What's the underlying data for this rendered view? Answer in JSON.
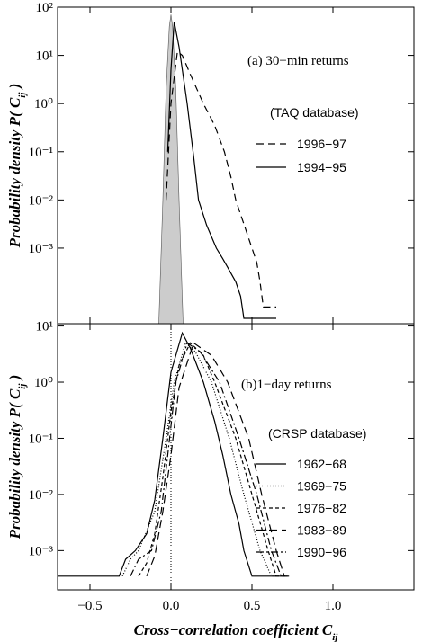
{
  "chart_data": [
    {
      "type": "line",
      "log_y": true,
      "annotations": [
        "(a) 30−min returns",
        "(TAQ database)"
      ],
      "ylabel": {
        "text": "Probability density P( C",
        "sub": "ij",
        "end": " )"
      },
      "xlim": [
        -0.7,
        1.5
      ],
      "xticks": [
        -0.5,
        0,
        0.5,
        1
      ],
      "ylim": [
        2.7e-05,
        100
      ],
      "yticks": [
        {
          "value": 100,
          "label": "10²"
        },
        {
          "value": 10,
          "label": "10¹"
        },
        {
          "value": 1,
          "label": "10⁰"
        },
        {
          "value": 0.1,
          "label": "10⁻¹"
        },
        {
          "value": 0.01,
          "label": "10⁻²"
        },
        {
          "value": 0.001,
          "label": "10⁻³"
        }
      ],
      "shaded": {
        "color": "#cccccc",
        "x": [
          -0.075,
          -0.05,
          -0.03,
          -0.01,
          0.0,
          0.01,
          0.03,
          0.05,
          0.075
        ],
        "values": [
          2.7e-05,
          0.01,
          2,
          40,
          70,
          40,
          2,
          0.01,
          2.7e-05
        ]
      },
      "series": [
        {
          "name": "1996−97",
          "color": "#000000",
          "dash": "8,5",
          "x": [
            -0.03,
            0.0,
            0.04,
            0.07,
            0.12,
            0.2,
            0.27,
            0.33,
            0.37,
            0.4,
            0.43,
            0.47,
            0.5,
            0.53,
            0.55,
            0.57,
            0.65
          ],
          "values": [
            0.01,
            1,
            12,
            10,
            4,
            1,
            0.35,
            0.1,
            0.03,
            0.01,
            0.005,
            0.002,
            0.001,
            0.0005,
            0.0002,
            6e-05,
            6e-05
          ]
        },
        {
          "name": "1994−95",
          "color": "#000000",
          "dash": "",
          "x": [
            -0.02,
            0.0,
            0.02,
            0.05,
            0.1,
            0.14,
            0.17,
            0.22,
            0.28,
            0.32,
            0.35,
            0.4,
            0.43,
            0.45,
            0.5,
            0.65
          ],
          "values": [
            0.1,
            5,
            50,
            15,
            1,
            0.08,
            0.01,
            0.003,
            0.001,
            0.0006,
            0.0004,
            0.0002,
            0.0001,
            3.5e-05,
            3.5e-05,
            3.5e-05
          ]
        }
      ]
    },
    {
      "type": "line",
      "log_y": true,
      "annotations": [
        "(b)1−day returns",
        "(CRSP database)"
      ],
      "ylabel": {
        "text": "Probability density P( C",
        "sub": "ij",
        "end": " )"
      },
      "xlabel": {
        "text": "Cross−correlation coefficient C",
        "sub": "ij"
      },
      "xlim": [
        -0.7,
        1.5
      ],
      "xticks": [
        {
          "value": -0.5,
          "label": "−0.5"
        },
        {
          "value": 0,
          "label": "0.0"
        },
        {
          "value": 0.5,
          "label": "0.5"
        },
        {
          "value": 1,
          "label": "1.0"
        }
      ],
      "ylim": [
        0.0002,
        11
      ],
      "yticks": [
        {
          "value": 10,
          "label": "10¹"
        },
        {
          "value": 1,
          "label": "10⁰"
        },
        {
          "value": 0.1,
          "label": "10⁻¹"
        },
        {
          "value": 0.01,
          "label": "10⁻²"
        },
        {
          "value": 0.001,
          "label": "10⁻³"
        }
      ],
      "vline": 0,
      "series": [
        {
          "name": "1962−68",
          "color": "#000000",
          "dash": "",
          "x": [
            -0.7,
            -0.32,
            -0.28,
            -0.22,
            -0.15,
            -0.1,
            -0.05,
            0.0,
            0.07,
            0.12,
            0.2,
            0.27,
            0.32,
            0.37,
            0.42,
            0.45,
            0.5,
            0.7
          ],
          "values": [
            0.00035,
            0.00035,
            0.0007,
            0.001,
            0.002,
            0.008,
            0.1,
            1.5,
            7.5,
            4,
            1,
            0.2,
            0.05,
            0.01,
            0.003,
            0.001,
            0.00035,
            0.00035
          ]
        },
        {
          "name": "1969−75",
          "color": "#000000",
          "dash": "1,2",
          "x": [
            -0.3,
            -0.25,
            -0.2,
            -0.1,
            -0.03,
            0.02,
            0.09,
            0.15,
            0.25,
            0.36,
            0.45,
            0.55,
            0.62,
            0.7
          ],
          "values": [
            0.00035,
            0.0007,
            0.001,
            0.005,
            0.1,
            1,
            5,
            3.5,
            1,
            0.1,
            0.01,
            0.001,
            0.00035,
            0.00035
          ]
        },
        {
          "name": "1976−82",
          "color": "#000000",
          "dash": "4,3",
          "x": [
            -0.2,
            -0.15,
            -0.1,
            -0.05,
            0.0,
            0.05,
            0.12,
            0.2,
            0.27,
            0.4,
            0.5,
            0.6,
            0.65,
            0.72
          ],
          "values": [
            0.00035,
            0.0006,
            0.002,
            0.02,
            0.3,
            2,
            5,
            3,
            1,
            0.1,
            0.01,
            0.001,
            0.00035,
            0.00035
          ]
        },
        {
          "name": "1983−89",
          "color": "#000000",
          "dash": "9,5",
          "x": [
            -0.15,
            -0.1,
            -0.05,
            0.0,
            0.05,
            0.14,
            0.25,
            0.35,
            0.48,
            0.56,
            0.65,
            0.7,
            0.73
          ],
          "values": [
            0.00035,
            0.0008,
            0.005,
            0.05,
            0.8,
            5,
            3,
            1,
            0.1,
            0.01,
            0.001,
            0.00035,
            0.00035
          ]
        },
        {
          "name": "1990−96",
          "color": "#000000",
          "dash": "8,3,2,3",
          "x": [
            -0.25,
            -0.2,
            -0.12,
            -0.06,
            -0.02,
            0.03,
            0.1,
            0.18,
            0.3,
            0.42,
            0.53,
            0.62,
            0.68,
            0.72
          ],
          "values": [
            0.00035,
            0.0007,
            0.001,
            0.005,
            0.05,
            1,
            5,
            3.5,
            1,
            0.1,
            0.01,
            0.001,
            0.00035,
            0.00035
          ]
        }
      ]
    }
  ]
}
